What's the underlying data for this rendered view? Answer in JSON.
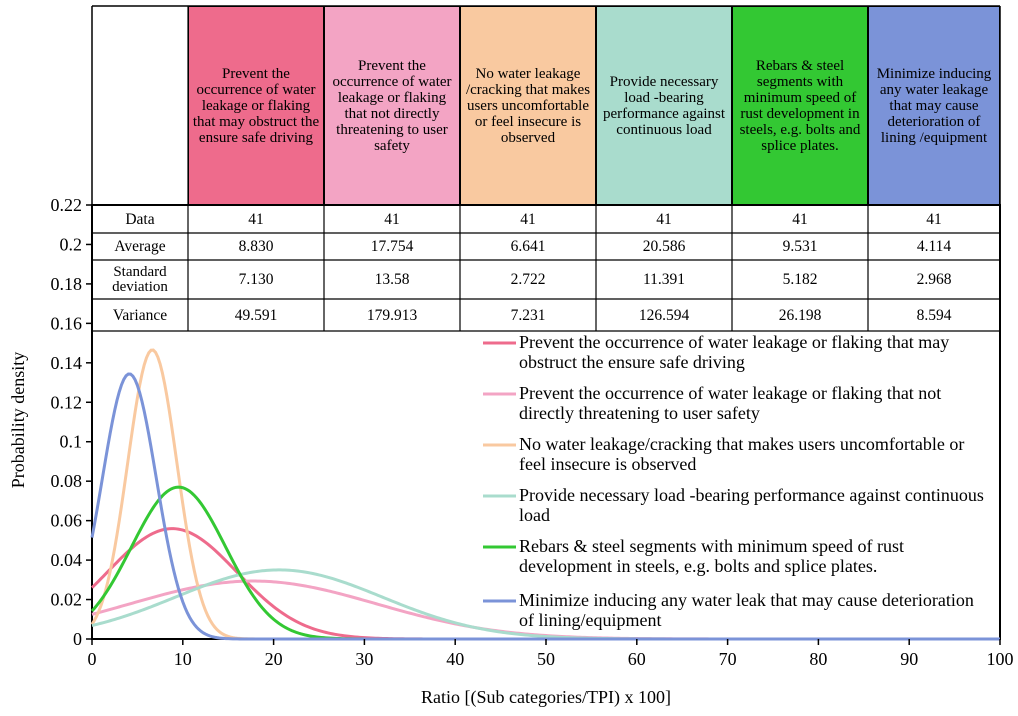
{
  "chart_data": {
    "type": "line",
    "title": "",
    "xlabel": "Ratio [(Sub categories/TPI) x 100]",
    "ylabel": "Probability density",
    "xlim": [
      0,
      100
    ],
    "ylim": [
      0,
      0.22
    ],
    "xticks": [
      "0",
      "10",
      "20",
      "30",
      "40",
      "50",
      "60",
      "70",
      "80",
      "90",
      "100"
    ],
    "yticks": [
      "0",
      "0.02",
      "0.04",
      "0.06",
      "0.08",
      "0.1",
      "0.12",
      "0.14",
      "0.16",
      "0.18",
      "0.2",
      "0.22"
    ],
    "grid": false,
    "legend_position": "right",
    "table": {
      "row_labels": [
        "Data",
        "Average",
        "Standard deviation",
        "Variance"
      ],
      "columns": [
        {
          "header": "Prevent the occurrence of water leakage or flaking that may obstruct the ensure safe driving",
          "color": "#ee6b8c",
          "data": "41",
          "average": "8.830",
          "std": "7.130",
          "variance": "49.591"
        },
        {
          "header": "Prevent the occurrence of water leakage or flaking that not directly threatening to user safety",
          "color": "#f3a4c4",
          "data": "41",
          "average": "17.754",
          "std": "13.58",
          "variance": "179.913"
        },
        {
          "header": "No water leakage /cracking that makes users uncomfortable or feel insecure is observed",
          "color": "#f9c9a0",
          "data": "41",
          "average": "6.641",
          "std": "2.722",
          "variance": "7.231"
        },
        {
          "header": "Provide necessary load -bearing performance against continuous load",
          "color": "#a9dccd",
          "data": "41",
          "average": "20.586",
          "std": "11.391",
          "variance": "126.594"
        },
        {
          "header": "Rebars & steel segments with minimum speed of rust development in steels, e.g. bolts and splice plates.",
          "color": "#33c833",
          "data": "41",
          "average": "9.531",
          "std": "5.182",
          "variance": "26.198"
        },
        {
          "header": "Minimize inducing any water leakage that may cause deterioration of lining /equipment",
          "color": "#7b93d8",
          "data": "41",
          "average": "4.114",
          "std": "2.968",
          "variance": "8.594"
        }
      ]
    },
    "series": [
      {
        "name": "Prevent the occurrence of water leakage or flaking that may obstruct the ensure safe driving",
        "color": "#ee6b8c",
        "mean": 8.83,
        "std": 7.13
      },
      {
        "name": "Prevent the occurrence of water leakage or flaking that not directly threatening to user safety",
        "color": "#f3a4c4",
        "mean": 17.754,
        "std": 13.58
      },
      {
        "name": "No water leakage/cracking that makes users uncomfortable or feel insecure is observed",
        "color": "#f9c9a0",
        "mean": 6.641,
        "std": 2.722
      },
      {
        "name": "Provide necessary load -bearing performance against continuous load",
        "color": "#a9dccd",
        "mean": 20.586,
        "std": 11.391
      },
      {
        "name": "Rebars & steel segments with minimum speed of rust development in steels, e.g. bolts and splice plates.",
        "color": "#33c833",
        "mean": 9.531,
        "std": 5.182
      },
      {
        "name": "Minimize inducing any water leak that may cause deterioration of lining/equipment",
        "color": "#7b93d8",
        "mean": 4.114,
        "std": 2.968
      }
    ]
  }
}
